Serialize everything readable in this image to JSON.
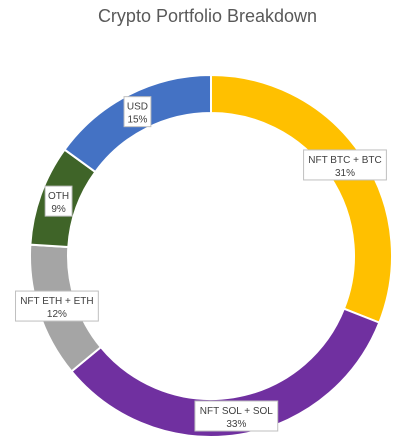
{
  "chart_data": {
    "type": "pie",
    "title": "Crypto Portfolio Breakdown",
    "categories": [
      "NFT BTC + BTC",
      "NFT SOL + SOL",
      "NFT ETH + ETH",
      "OTH",
      "USD"
    ],
    "values": [
      31,
      33,
      12,
      9,
      15
    ],
    "value_labels": [
      "31%",
      "33%",
      "12%",
      "9%",
      "15%"
    ],
    "colors": [
      "#FFC000",
      "#7030A0",
      "#A5A5A5",
      "#3F6428",
      "#4472C4"
    ],
    "style": "doughnut",
    "legend": "none"
  }
}
